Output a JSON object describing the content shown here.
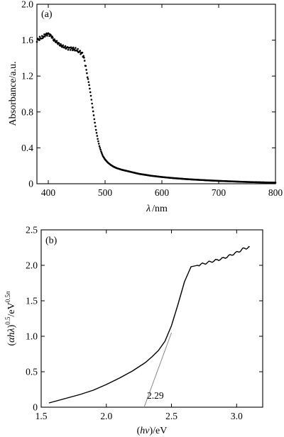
{
  "chart_data": [
    {
      "panel": "(a)",
      "type": "scatter",
      "xlabel_symbol": "λ",
      "xlabel_unit": "/nm",
      "ylabel": "Absorbance/a.u.",
      "xlim": [
        380,
        800
      ],
      "ylim": [
        0,
        2.0
      ],
      "xticks": [
        400,
        500,
        600,
        700,
        800
      ],
      "yticks": [
        0,
        0.4,
        0.8,
        1.2,
        1.6,
        2.0
      ],
      "ytick_labels": [
        "0",
        "0.4",
        "0.8",
        "1.2",
        "1.6",
        "2.0"
      ],
      "grid": false,
      "series": [
        {
          "color": "#000000",
          "x": [
            380,
            385,
            390,
            395,
            400,
            405,
            410,
            415,
            420,
            425,
            430,
            435,
            440,
            445,
            450,
            455,
            460,
            463,
            466,
            469,
            472,
            475,
            478,
            481,
            484,
            487,
            490,
            493,
            496,
            500,
            505,
            510,
            515,
            520,
            530,
            540,
            550,
            560,
            570,
            580,
            600,
            620,
            640,
            660,
            680,
            700,
            720,
            740,
            760,
            780,
            800
          ],
          "y": [
            1.6,
            1.62,
            1.63,
            1.66,
            1.67,
            1.65,
            1.6,
            1.58,
            1.55,
            1.53,
            1.52,
            1.51,
            1.51,
            1.5,
            1.49,
            1.47,
            1.45,
            1.4,
            1.3,
            1.2,
            1.1,
            0.98,
            0.85,
            0.72,
            0.6,
            0.5,
            0.42,
            0.36,
            0.31,
            0.27,
            0.235,
            0.21,
            0.19,
            0.175,
            0.155,
            0.14,
            0.125,
            0.11,
            0.1,
            0.09,
            0.075,
            0.063,
            0.053,
            0.045,
            0.038,
            0.032,
            0.027,
            0.022,
            0.018,
            0.015,
            0.012
          ]
        }
      ]
    },
    {
      "panel": "(b)",
      "type": "line",
      "xlabel": "(hν)/eV",
      "ylabel": "(αhλ)^0.5/eV^0.5n",
      "xlim": [
        1.5,
        3.2
      ],
      "ylim": [
        0,
        2.5
      ],
      "xticks": [
        1.5,
        2.0,
        2.5,
        3.0
      ],
      "xtick_labels": [
        "1.5",
        "2.0",
        "2.5",
        "3.0"
      ],
      "yticks": [
        0,
        0.5,
        1.0,
        1.5,
        2.0,
        2.5
      ],
      "ytick_labels": [
        "0",
        "0.5",
        "1.0",
        "1.5",
        "2.0",
        "2.5"
      ],
      "grid": false,
      "series": [
        {
          "color": "#000000",
          "x": [
            1.56,
            1.6,
            1.7,
            1.8,
            1.9,
            2.0,
            2.1,
            2.2,
            2.3,
            2.35,
            2.4,
            2.45,
            2.5,
            2.55,
            2.6,
            2.65,
            2.7,
            2.8,
            2.9,
            3.0,
            3.05,
            3.1
          ],
          "y": [
            0.06,
            0.08,
            0.13,
            0.18,
            0.24,
            0.32,
            0.41,
            0.51,
            0.63,
            0.71,
            0.8,
            0.93,
            1.15,
            1.45,
            1.77,
            1.98,
            2.0,
            2.05,
            2.1,
            2.18,
            2.23,
            2.26
          ]
        },
        {
          "color": "#888888",
          "x": [
            2.29,
            2.5
          ],
          "y": [
            0,
            1.05
          ]
        }
      ],
      "annotation": {
        "text": "2.29",
        "x": 2.29
      }
    }
  ]
}
